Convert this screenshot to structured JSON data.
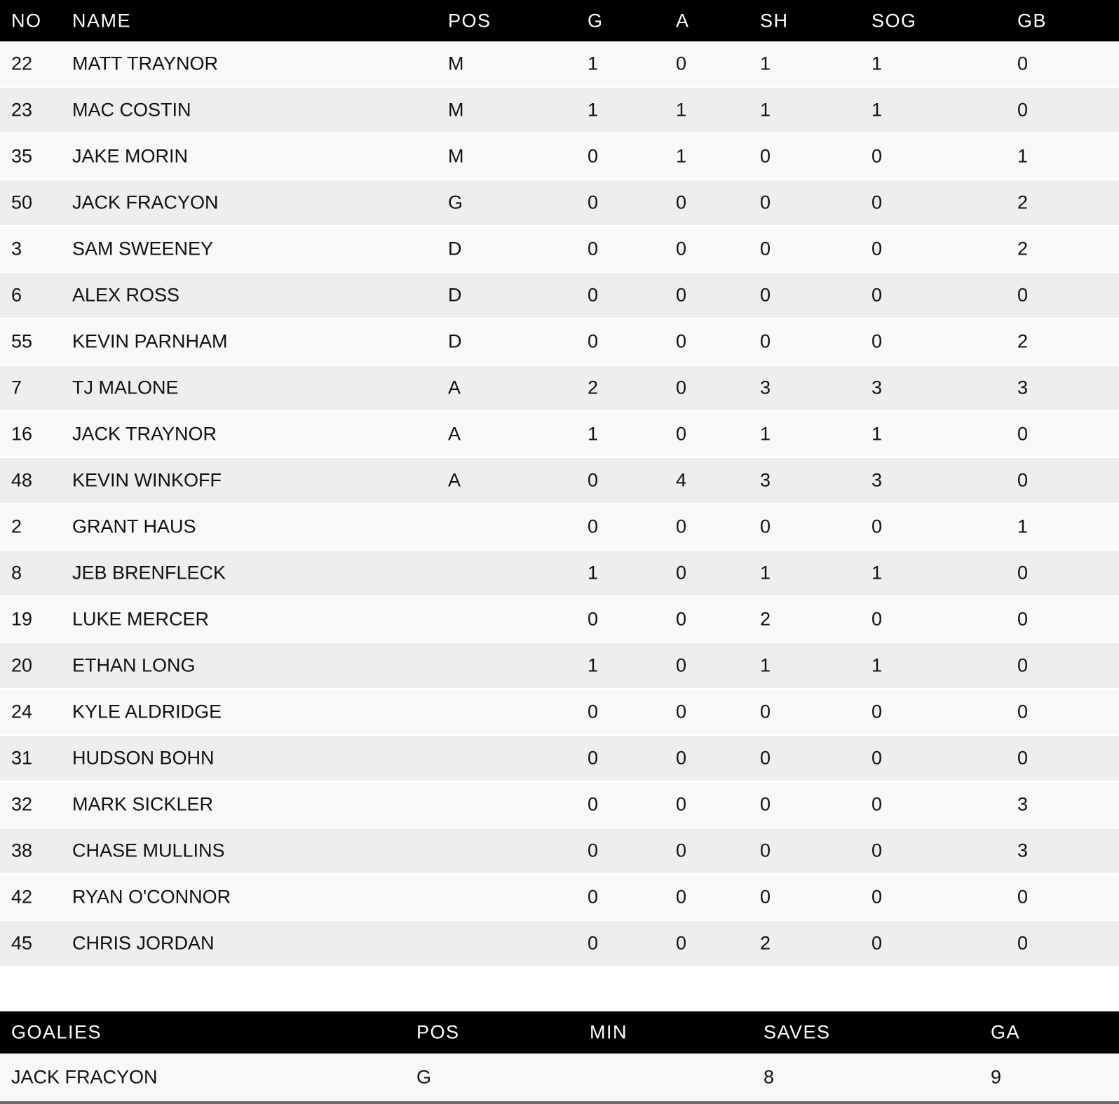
{
  "stats": {
    "headers": [
      "NO",
      "NAME",
      "POS",
      "G",
      "A",
      "SH",
      "SOG",
      "GB"
    ],
    "rows": [
      [
        "22",
        "MATT TRAYNOR",
        "M",
        "1",
        "0",
        "1",
        "1",
        "0"
      ],
      [
        "23",
        "MAC COSTIN",
        "M",
        "1",
        "1",
        "1",
        "1",
        "0"
      ],
      [
        "35",
        "JAKE MORIN",
        "M",
        "0",
        "1",
        "0",
        "0",
        "1"
      ],
      [
        "50",
        "JACK FRACYON",
        "G",
        "0",
        "0",
        "0",
        "0",
        "2"
      ],
      [
        "3",
        "SAM SWEENEY",
        "D",
        "0",
        "0",
        "0",
        "0",
        "2"
      ],
      [
        "6",
        "ALEX ROSS",
        "D",
        "0",
        "0",
        "0",
        "0",
        "0"
      ],
      [
        "55",
        "KEVIN PARNHAM",
        "D",
        "0",
        "0",
        "0",
        "0",
        "2"
      ],
      [
        "7",
        "TJ MALONE",
        "A",
        "2",
        "0",
        "3",
        "3",
        "3"
      ],
      [
        "16",
        "JACK TRAYNOR",
        "A",
        "1",
        "0",
        "1",
        "1",
        "0"
      ],
      [
        "48",
        "KEVIN WINKOFF",
        "A",
        "0",
        "4",
        "3",
        "3",
        "0"
      ],
      [
        "2",
        "GRANT HAUS",
        "",
        "0",
        "0",
        "0",
        "0",
        "1"
      ],
      [
        "8",
        "JEB BRENFLECK",
        "",
        "1",
        "0",
        "1",
        "1",
        "0"
      ],
      [
        "19",
        "LUKE MERCER",
        "",
        "0",
        "0",
        "2",
        "0",
        "0"
      ],
      [
        "20",
        "ETHAN LONG",
        "",
        "1",
        "0",
        "1",
        "1",
        "0"
      ],
      [
        "24",
        "KYLE ALDRIDGE",
        "",
        "0",
        "0",
        "0",
        "0",
        "0"
      ],
      [
        "31",
        "HUDSON BOHN",
        "",
        "0",
        "0",
        "0",
        "0",
        "0"
      ],
      [
        "32",
        "MARK SICKLER",
        "",
        "0",
        "0",
        "0",
        "0",
        "3"
      ],
      [
        "38",
        "CHASE MULLINS",
        "",
        "0",
        "0",
        "0",
        "0",
        "3"
      ],
      [
        "42",
        "RYAN O'CONNOR",
        "",
        "0",
        "0",
        "0",
        "0",
        "0"
      ],
      [
        "45",
        "CHRIS JORDAN",
        "",
        "0",
        "0",
        "2",
        "0",
        "0"
      ]
    ]
  },
  "goalies": {
    "headers": [
      "GOALIES",
      "POS",
      "MIN",
      "SAVES",
      "GA"
    ],
    "rows": [
      [
        "JACK FRACYON",
        "G",
        "",
        "8",
        "9"
      ]
    ]
  },
  "colors": {
    "header_bg": "#000000",
    "row_odd": "#f7f8fa",
    "row_even": "#edeef0"
  }
}
